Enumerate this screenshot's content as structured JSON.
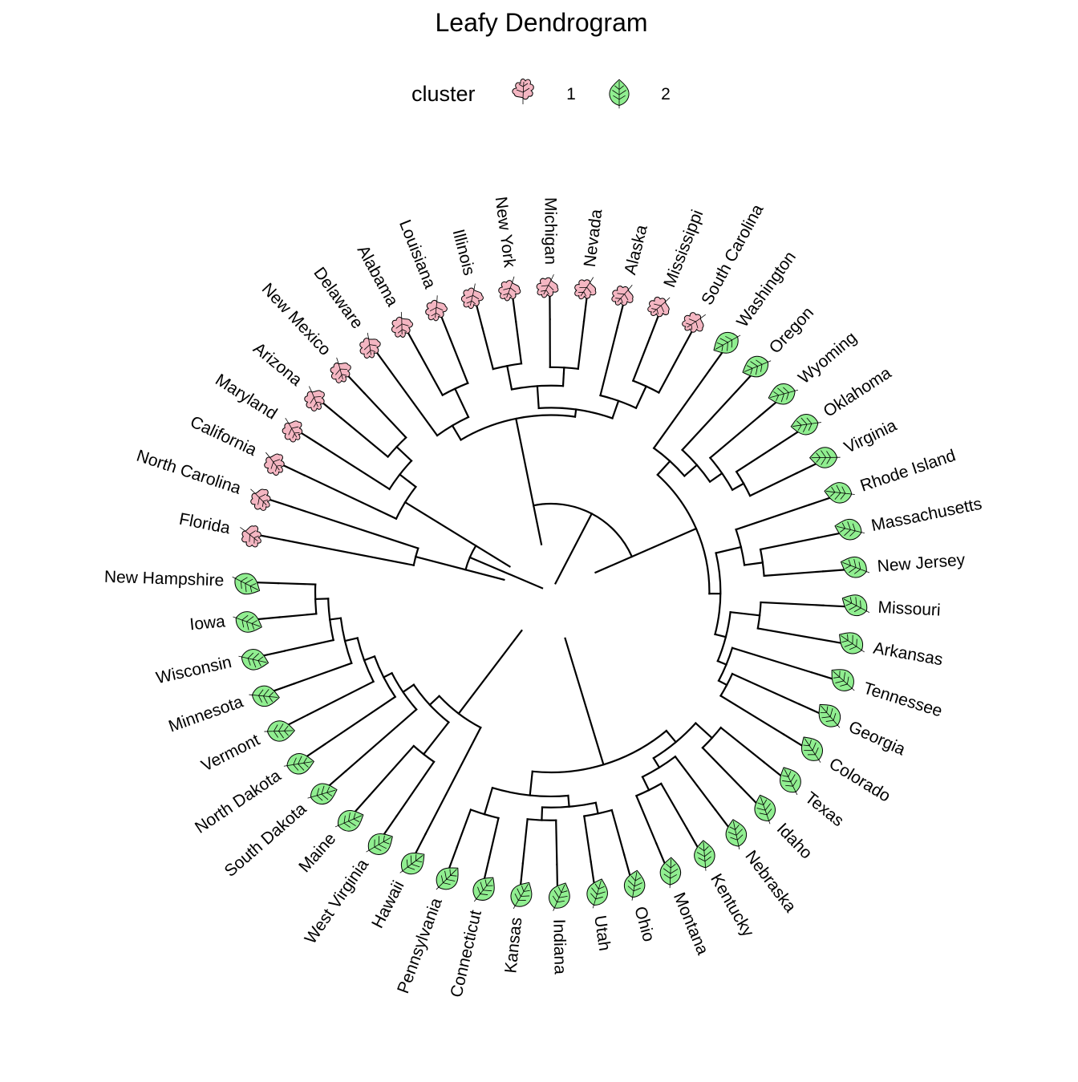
{
  "chart_data": {
    "type": "dendrogram",
    "layout": "circular",
    "title": "Leafy Dendrogram",
    "legend": {
      "title": "cluster",
      "position": "top",
      "entries": [
        {
          "label": "1",
          "color": "#f4b6c2",
          "icon": "oak-leaf-icon"
        },
        {
          "label": "2",
          "color": "#90ee90",
          "icon": "round-leaf-icon"
        }
      ]
    },
    "leaves": [
      {
        "label": "Florida",
        "cluster": 1
      },
      {
        "label": "North Carolina",
        "cluster": 1
      },
      {
        "label": "California",
        "cluster": 1
      },
      {
        "label": "Maryland",
        "cluster": 1
      },
      {
        "label": "Arizona",
        "cluster": 1
      },
      {
        "label": "New Mexico",
        "cluster": 1
      },
      {
        "label": "Delaware",
        "cluster": 1
      },
      {
        "label": "Alabama",
        "cluster": 1
      },
      {
        "label": "Louisiana",
        "cluster": 1
      },
      {
        "label": "Illinois",
        "cluster": 1
      },
      {
        "label": "New York",
        "cluster": 1
      },
      {
        "label": "Michigan",
        "cluster": 1
      },
      {
        "label": "Nevada",
        "cluster": 1
      },
      {
        "label": "Alaska",
        "cluster": 1
      },
      {
        "label": "Mississippi",
        "cluster": 1
      },
      {
        "label": "South Carolina",
        "cluster": 1
      },
      {
        "label": "Washington",
        "cluster": 2
      },
      {
        "label": "Oregon",
        "cluster": 2
      },
      {
        "label": "Wyoming",
        "cluster": 2
      },
      {
        "label": "Oklahoma",
        "cluster": 2
      },
      {
        "label": "Virginia",
        "cluster": 2
      },
      {
        "label": "Rhode Island",
        "cluster": 2
      },
      {
        "label": "Massachusetts",
        "cluster": 2
      },
      {
        "label": "New Jersey",
        "cluster": 2
      },
      {
        "label": "Missouri",
        "cluster": 2
      },
      {
        "label": "Arkansas",
        "cluster": 2
      },
      {
        "label": "Tennessee",
        "cluster": 2
      },
      {
        "label": "Georgia",
        "cluster": 2
      },
      {
        "label": "Colorado",
        "cluster": 2
      },
      {
        "label": "Texas",
        "cluster": 2
      },
      {
        "label": "Idaho",
        "cluster": 2
      },
      {
        "label": "Nebraska",
        "cluster": 2
      },
      {
        "label": "Kentucky",
        "cluster": 2
      },
      {
        "label": "Montana",
        "cluster": 2
      },
      {
        "label": "Ohio",
        "cluster": 2
      },
      {
        "label": "Utah",
        "cluster": 2
      },
      {
        "label": "Indiana",
        "cluster": 2
      },
      {
        "label": "Kansas",
        "cluster": 2
      },
      {
        "label": "Connecticut",
        "cluster": 2
      },
      {
        "label": "Pennsylvania",
        "cluster": 2
      },
      {
        "label": "Hawaii",
        "cluster": 2
      },
      {
        "label": "West Virginia",
        "cluster": 2
      },
      {
        "label": "Maine",
        "cluster": 2
      },
      {
        "label": "South Dakota",
        "cluster": 2
      },
      {
        "label": "North Dakota",
        "cluster": 2
      },
      {
        "label": "Vermont",
        "cluster": 2
      },
      {
        "label": "Minnesota",
        "cluster": 2
      },
      {
        "label": "Wisconsin",
        "cluster": 2
      },
      {
        "label": "Iowa",
        "cluster": 2
      },
      {
        "label": "New Hampshire",
        "cluster": 2
      }
    ],
    "merges": [
      [
        0,
        1,
        0.72
      ],
      [
        2,
        [
          3,
          [
            4,
            5,
            0.33
          ],
          0.44
        ],
        0.55
      ],
      [
        [
          6,
          [
            7,
            8,
            0.26
          ],
          0.43
        ],
        [
          [
            [
              9,
              10,
              0.23
            ],
            [
              11,
              12,
              0.26
            ],
            0.36
          ],
          [
            13,
            [
              14,
              15,
              0.25
            ],
            0.38
          ],
          0.48
        ],
        0.52
      ],
      [
        [
          16,
          [
            17,
            [
              18,
              [
                19,
                20,
                0.28
              ],
              0.35
            ],
            0.43
          ],
          0.52
        ],
        [
          [
            21,
            [
              22,
              23,
              0.32
            ],
            0.42
          ],
          [
            [
              24,
              25,
              0.34
            ],
            [
              26,
              [
                27,
                28,
                0.4
              ],
              0.45
            ],
            0.5
          ],
          0.56
        ],
        0.62
      ],
      [
        [
          [
            29,
            30,
            0.3
          ],
          [
            31,
            [
              32,
              33,
              0.28
            ],
            0.36
          ],
          0.42
        ],
        [
          [
            [
              34,
              35,
              0.25
            ],
            [
              36,
              37,
              0.24
            ],
            0.31
          ],
          [
            38,
            39,
            0.22
          ],
          0.37
        ],
        0.5
      ],
      [
        40,
        [
          [
            41,
            42,
            0.36
          ],
          [
            43,
            [
              44,
              [
                45,
                [
                  46,
                  [
                    47,
                    [
                      48,
                      49,
                      0.2
                    ],
                    0.27
                  ],
                  0.33
                ],
                0.4
              ],
              0.46
            ],
            0.51
          ],
          0.58
        ],
        0.65
      ]
    ]
  }
}
